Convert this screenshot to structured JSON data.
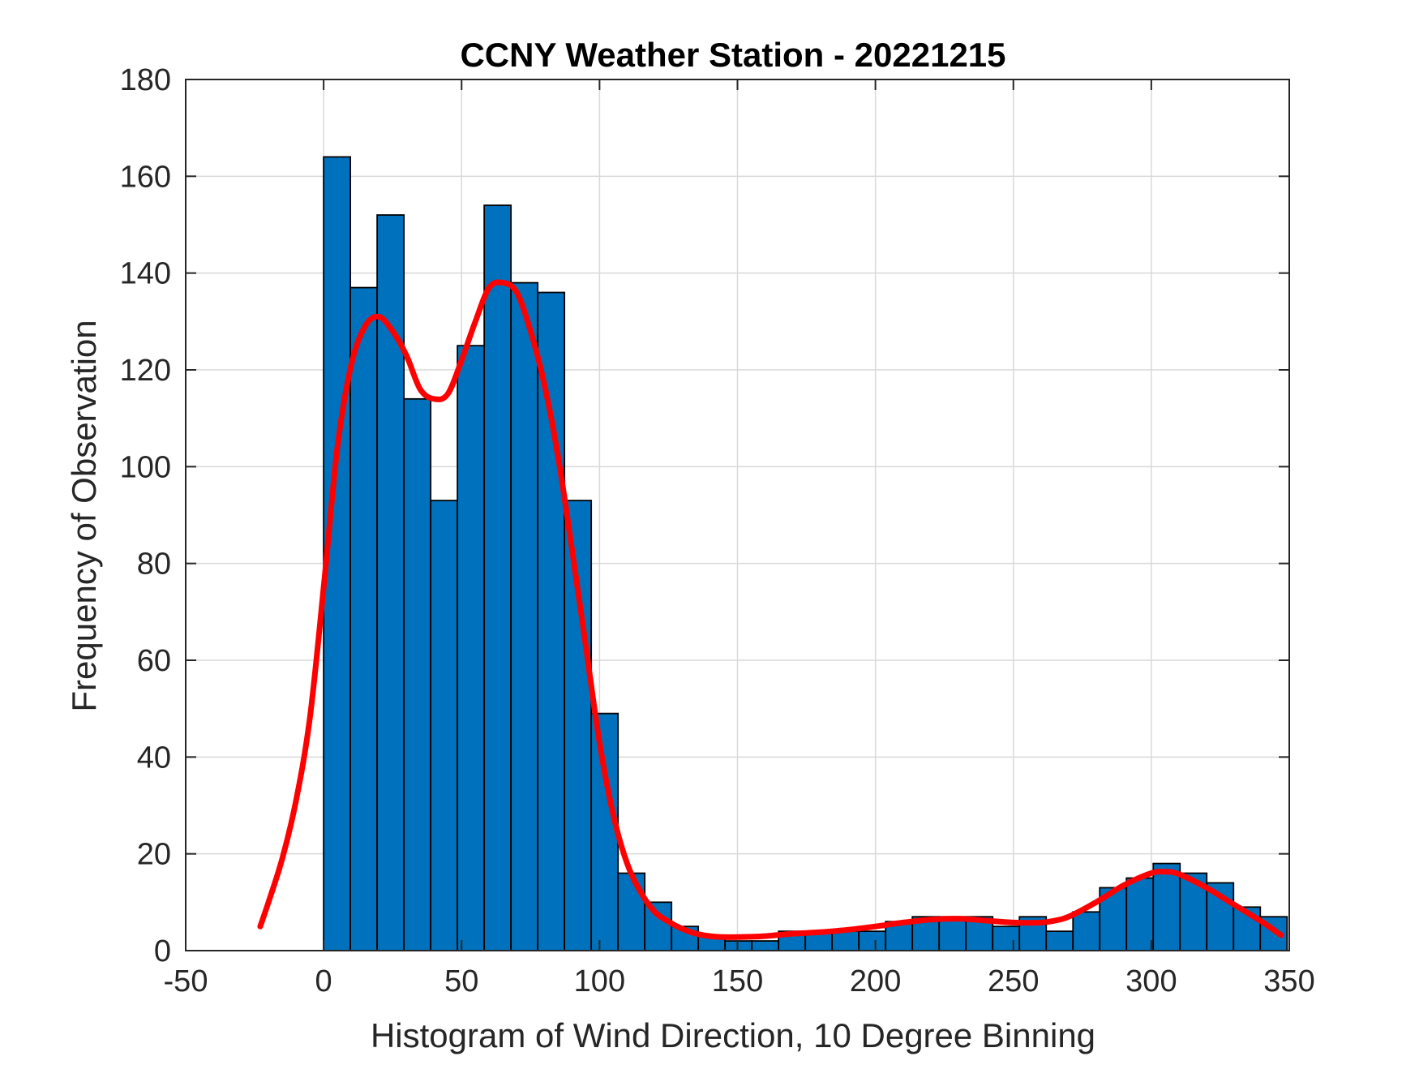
{
  "chart_data": {
    "type": "bar",
    "title": "CCNY Weather Station - 20221215",
    "xlabel": "Histogram of Wind Direction, 10 Degree Binning",
    "ylabel": "Frequency of Observation",
    "xlim": [
      -50,
      350
    ],
    "ylim": [
      0,
      180
    ],
    "xticks": [
      "-50",
      "0",
      "50",
      "100",
      "150",
      "200",
      "250",
      "300",
      "350"
    ],
    "yticks": [
      "0",
      "20",
      "40",
      "60",
      "80",
      "100",
      "120",
      "140",
      "160",
      "180"
    ],
    "grid": true,
    "legend": "none",
    "bin_width": 9.7,
    "bin_edges_start": 0,
    "values": [
      164,
      137,
      152,
      114,
      93,
      125,
      154,
      138,
      136,
      93,
      49,
      16,
      10,
      5,
      3,
      2,
      2,
      4,
      4,
      4,
      4,
      6,
      7,
      7,
      7,
      5,
      7,
      4,
      8,
      13,
      15,
      18,
      16,
      14,
      9,
      7
    ],
    "curve": {
      "x": [
        -23,
        -20,
        -15,
        -10,
        -5,
        0,
        5,
        10,
        15,
        20,
        25,
        30,
        35,
        40,
        45,
        50,
        55,
        60,
        65,
        70,
        75,
        80,
        85,
        90,
        95,
        100,
        105,
        110,
        115,
        120,
        125,
        130,
        135,
        140,
        145,
        150,
        160,
        170,
        180,
        190,
        200,
        210,
        220,
        230,
        240,
        250,
        260,
        265,
        270,
        280,
        290,
        300,
        305,
        310,
        320,
        330,
        340,
        347
      ],
      "y": [
        5,
        10,
        19,
        31,
        48,
        75,
        104,
        121,
        129,
        131,
        128,
        123,
        116,
        114,
        115,
        122,
        130,
        137,
        138,
        136,
        128,
        117,
        102,
        83,
        63,
        43,
        28,
        18,
        12,
        8,
        6,
        4.5,
        3.5,
        3,
        2.8,
        2.8,
        3,
        3.5,
        3.8,
        4.3,
        5,
        5.8,
        6.4,
        6.6,
        6.2,
        5.8,
        5.8,
        6.2,
        7,
        10,
        13.5,
        16,
        16.3,
        15.8,
        13,
        9.5,
        6,
        3.2
      ]
    },
    "colors": {
      "bar_fill": "#0072bd",
      "bar_edge": "#000000",
      "curve": "#ff0000",
      "grid": "#d9d9d9",
      "axis": "#262626"
    }
  }
}
